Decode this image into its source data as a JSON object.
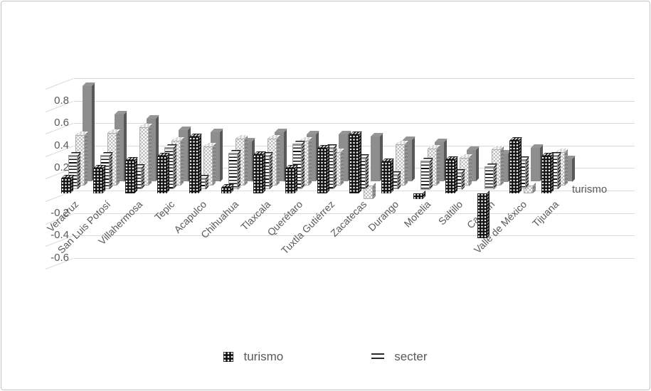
{
  "chart_data": {
    "type": "bar",
    "projection": "3d",
    "title": "",
    "xlabel": "",
    "ylabel": "",
    "categories": [
      "Veracruz",
      "San Luis Potosí",
      "Villahermosa",
      "Tepic",
      "Acapulco",
      "Chihuahua",
      "Tlaxcala",
      "Querétaro",
      "Tuxtla Gutiérrez",
      "Zacatecas",
      "Durango",
      "Morelia",
      "Saltillo",
      "Cancún",
      "Valle de México",
      "Tijuana"
    ],
    "series": [
      {
        "name": "turismo",
        "pattern": "dots",
        "in_legend": true,
        "values": [
          0.13,
          0.22,
          0.29,
          0.33,
          0.5,
          0.05,
          0.34,
          0.22,
          0.4,
          0.52,
          0.28,
          -0.05,
          0.3,
          -0.4,
          0.47,
          0.33
        ]
      },
      {
        "name": "secter",
        "pattern": "hlines",
        "in_legend": true,
        "values": [
          0.3,
          0.3,
          0.19,
          0.37,
          0.1,
          0.32,
          0.3,
          0.4,
          0.37,
          0.28,
          0.13,
          0.25,
          0.15,
          0.2,
          0.26,
          0.3
        ]
      },
      {
        "name": "",
        "pattern": "checker",
        "in_legend": false,
        "values": [
          0.45,
          0.47,
          0.52,
          0.4,
          0.35,
          0.42,
          0.42,
          0.4,
          0.3,
          -0.12,
          0.37,
          0.33,
          0.25,
          0.32,
          -0.07,
          0.3
        ]
      },
      {
        "name": "",
        "pattern": "solid",
        "in_legend": false,
        "values": [
          0.85,
          0.6,
          0.56,
          0.46,
          0.44,
          0.36,
          0.44,
          0.42,
          0.42,
          0.4,
          0.37,
          0.35,
          0.28,
          0.25,
          0.3,
          0.2
        ]
      }
    ],
    "y_axis": {
      "tick_labels": [
        "0.8",
        "0.6",
        "0.4",
        "0.2",
        "0",
        "-0.2",
        "-0.4",
        "-0.6"
      ],
      "tick_values": [
        0.8,
        0.6,
        0.4,
        0.2,
        0,
        -0.2,
        -0.4,
        -0.6
      ],
      "ylim": [
        -0.6,
        1.0
      ],
      "grid": true
    },
    "depth_axis_label": "turismo",
    "legend": [
      {
        "label": "turismo",
        "pattern": "dots"
      },
      {
        "label": "secter",
        "pattern": "hlines"
      }
    ],
    "legend_position": "bottom"
  },
  "colors": {
    "text": "#595959",
    "gridline": "#d9d9d9",
    "bar_black": "#141414",
    "bar_gray": "#8e8e8e",
    "checker_gray": "#bcbcbc",
    "border": "#c3c3c3",
    "background": "#ffffff"
  }
}
